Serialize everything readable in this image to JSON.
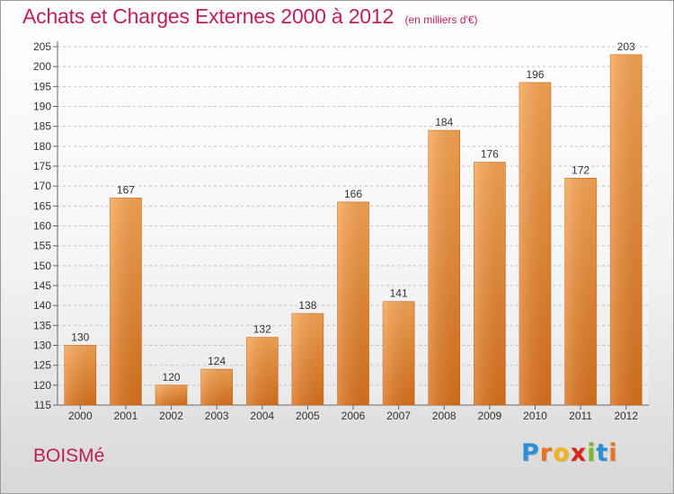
{
  "chart_data": {
    "type": "bar",
    "title": "Achats et Charges Externes 2000 à 2012",
    "subtitle": "(en milliers d'€)",
    "categories": [
      "2000",
      "2001",
      "2002",
      "2003",
      "2004",
      "2005",
      "2006",
      "2007",
      "2008",
      "2009",
      "2010",
      "2011",
      "2012"
    ],
    "values": [
      130,
      167,
      120,
      124,
      132,
      138,
      166,
      141,
      184,
      176,
      196,
      172,
      203
    ],
    "ylim": [
      115,
      205
    ],
    "ytick_step": 5,
    "grid": true,
    "legend": "none",
    "bar_color": "#f08c2e"
  },
  "place_name": "BOISMé",
  "logo": {
    "text": "Proxiti",
    "colors": [
      "#2a8fd6",
      "#e8731f",
      "#f2b21b",
      "#d9261c",
      "#7ab929",
      "#2a8fd6",
      "#e8731f"
    ]
  }
}
